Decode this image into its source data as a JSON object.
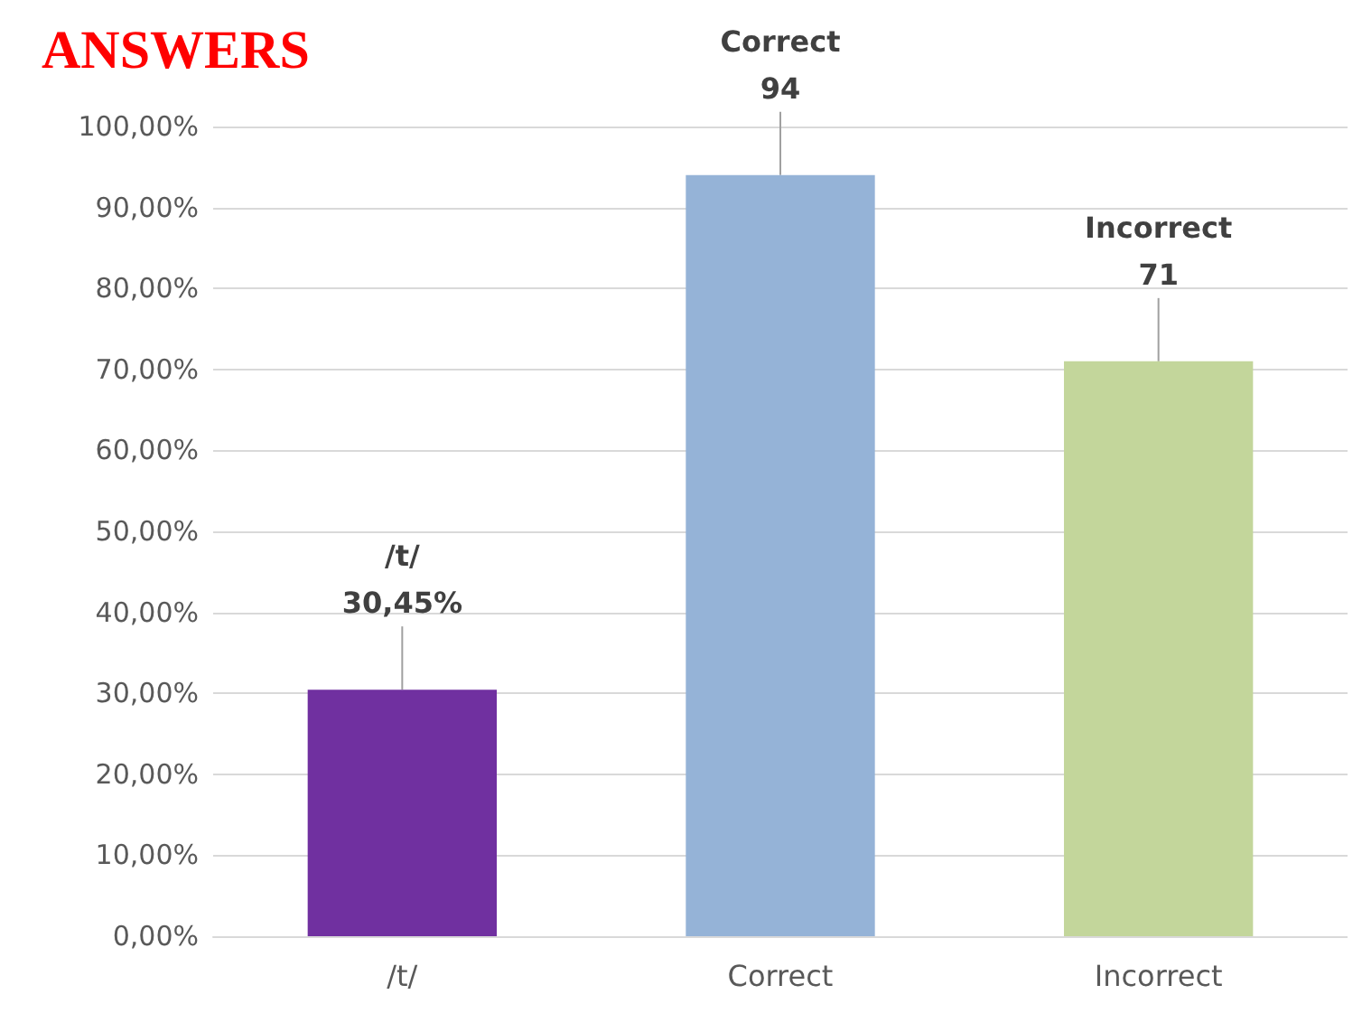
{
  "chart_data": {
    "type": "bar",
    "title": "ANSWERS",
    "categories": [
      "/t/",
      "Correct",
      "Incorrect"
    ],
    "values": [
      30.45,
      94,
      71
    ],
    "colors": [
      "#7030a0",
      "#95b3d7",
      "#c3d69b"
    ],
    "value_labels": [
      "30,45%",
      "94",
      "71"
    ],
    "ylim": [
      0,
      100
    ],
    "yticks": [
      {
        "value": 0,
        "label": "0,00%"
      },
      {
        "value": 10,
        "label": "10,00%"
      },
      {
        "value": 20,
        "label": "20,00%"
      },
      {
        "value": 30,
        "label": "30,00%"
      },
      {
        "value": 40,
        "label": "40,00%"
      },
      {
        "value": 50,
        "label": "50,00%"
      },
      {
        "value": 60,
        "label": "60,00%"
      },
      {
        "value": 70,
        "label": "70,00%"
      },
      {
        "value": 80,
        "label": "80,00%"
      },
      {
        "value": 90,
        "label": "90,00%"
      },
      {
        "value": 100,
        "label": "100,00%"
      }
    ],
    "grid": true
  }
}
